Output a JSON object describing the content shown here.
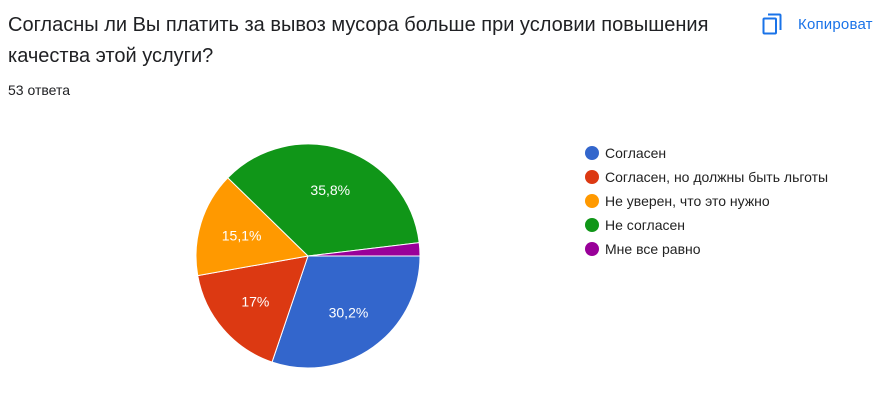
{
  "question": {
    "title": "Согласны ли Вы платить за вывоз мусора больше при условии повышения качества этой услуги?",
    "responses": "53 ответа"
  },
  "copy_button": {
    "label": "Копироват",
    "icon": "copy-icon",
    "color": "#1a73e8"
  },
  "chart_data": {
    "type": "pie",
    "categories": [
      "Согласен",
      "Согласен, но должны быть льготы",
      "Не уверен, что это нужно",
      "Не согласен",
      "Мне все равно"
    ],
    "values": [
      30.2,
      17,
      15.1,
      35.8,
      1.9
    ],
    "labels": [
      "30,2%",
      "17%",
      "15,1%",
      "35,8%",
      ""
    ],
    "colors": [
      "#3366cc",
      "#dc3912",
      "#ff9900",
      "#109618",
      "#990099"
    ],
    "legend_position": "right"
  }
}
